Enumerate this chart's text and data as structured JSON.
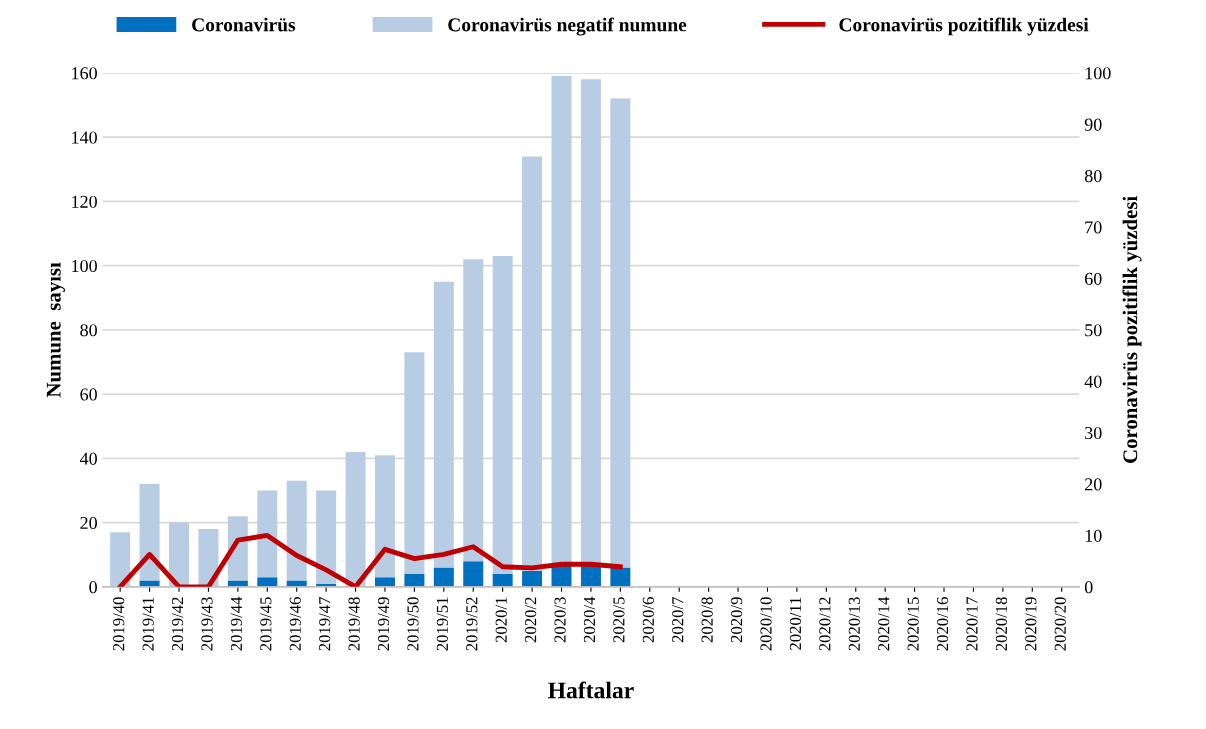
{
  "chart_data": {
    "type": "bar",
    "stacked": true,
    "xlabel": "Haftalar",
    "ylabel": "Numune  sayısı",
    "y2label": "Coronavirüs pozitiflik yüzdesi",
    "categories": [
      "2019/40",
      "2019/41",
      "2019/42",
      "2019/43",
      "2019/44",
      "2019/45",
      "2019/46",
      "2019/47",
      "2019/48",
      "2019/49",
      "2019/50",
      "2019/51",
      "2019/52",
      "2020/1",
      "2020/2",
      "2020/3",
      "2020/4",
      "2020/5",
      "2020/6",
      "2020/7",
      "2020/8",
      "2020/9",
      "2020/10",
      "2020/11",
      "2020/12",
      "2020/13",
      "2020/14",
      "2020/15",
      "2020/16",
      "2020/17",
      "2020/18",
      "2020/19",
      "2020/20"
    ],
    "series": [
      {
        "name": "Coronavirüs",
        "color": "#0070c0",
        "values": [
          0,
          2,
          0,
          0,
          2,
          3,
          2,
          1,
          0,
          3,
          4,
          6,
          8,
          4,
          5,
          7,
          7,
          6,
          null,
          null,
          null,
          null,
          null,
          null,
          null,
          null,
          null,
          null,
          null,
          null,
          null,
          null,
          null
        ]
      },
      {
        "name": "Coronavirüs negatif numune",
        "color": "#b8cce4",
        "values": [
          17,
          30,
          20,
          18,
          20,
          27,
          31,
          29,
          42,
          38,
          69,
          89,
          94,
          99,
          129,
          152,
          151,
          146,
          null,
          null,
          null,
          null,
          null,
          null,
          null,
          null,
          null,
          null,
          null,
          null,
          null,
          null,
          null
        ]
      },
      {
        "name": "Coronavirüs pozitiflik yüzdesi",
        "type": "line",
        "axis": "y2",
        "color": "#c00000",
        "values": [
          0,
          6.3,
          0,
          0,
          9.1,
          10,
          6.1,
          3.3,
          0,
          7.3,
          5.5,
          6.3,
          7.8,
          3.9,
          3.7,
          4.4,
          4.4,
          3.9,
          null,
          null,
          null,
          null,
          null,
          null,
          null,
          null,
          null,
          null,
          null,
          null,
          null,
          null,
          null
        ]
      }
    ],
    "ylim": [
      0,
      160
    ],
    "yticks": [
      0,
      20,
      40,
      60,
      80,
      100,
      120,
      140,
      160
    ],
    "y2lim": [
      0,
      100
    ],
    "y2ticks": [
      0,
      10,
      20,
      30,
      40,
      50,
      60,
      70,
      80,
      90,
      100
    ],
    "grid": "y",
    "legend": "top",
    "marker": "none",
    "line_style": "solid"
  }
}
